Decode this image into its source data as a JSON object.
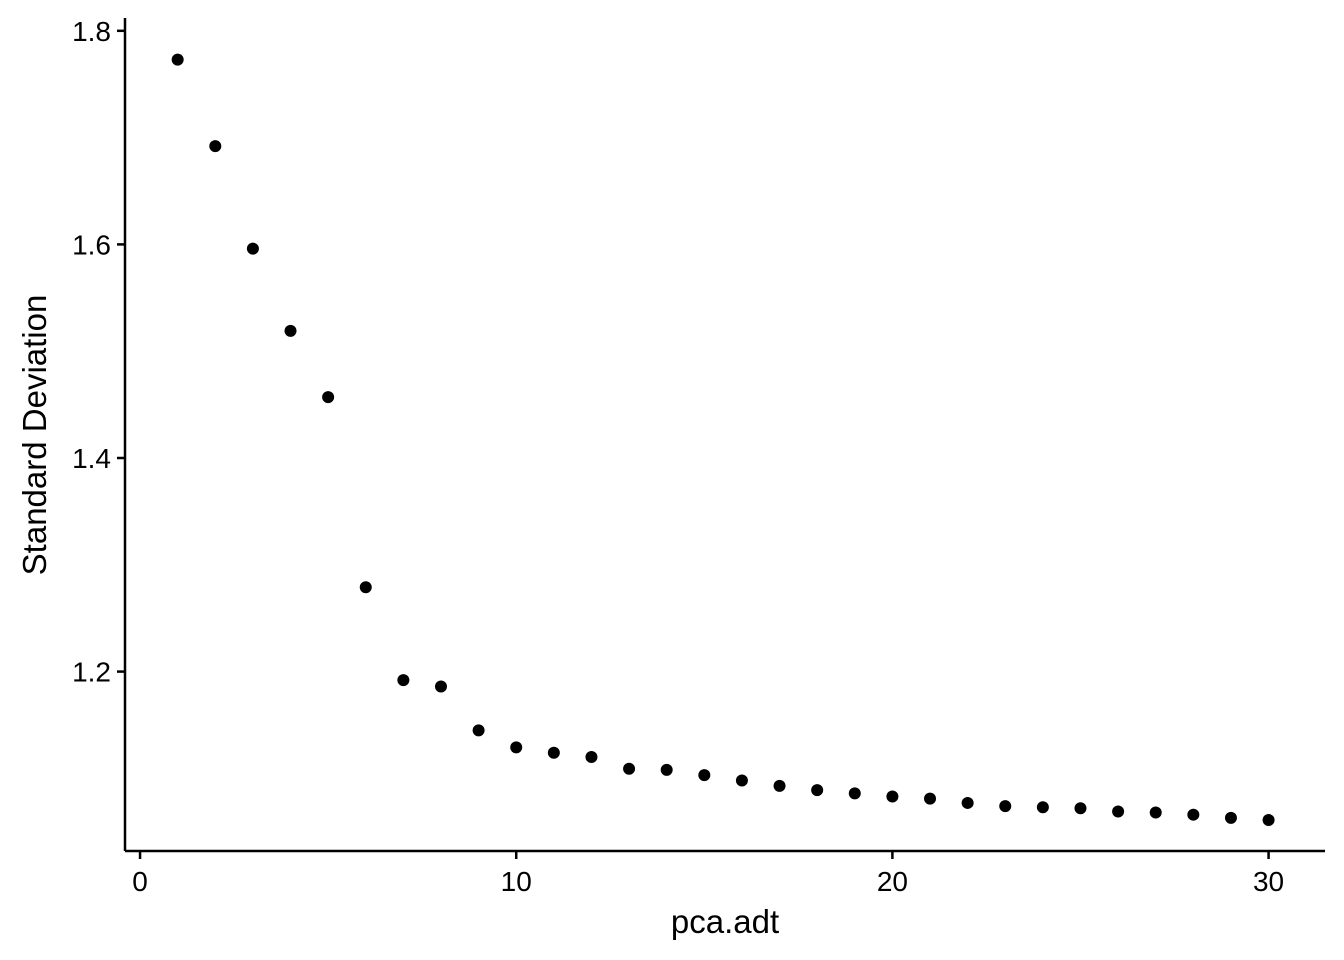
{
  "chart_data": {
    "type": "scatter",
    "title": "",
    "xlabel": "pca.adt",
    "ylabel": "Standard Deviation",
    "xlim": [
      -0.4,
      31.5
    ],
    "ylim": [
      1.032,
      1.812
    ],
    "x_ticks": [
      0,
      10,
      20,
      30
    ],
    "x_tick_labels": [
      "0",
      "10",
      "20",
      "30"
    ],
    "y_ticks": [
      1.2,
      1.4,
      1.6,
      1.8
    ],
    "y_tick_labels": [
      "1.2",
      "1.4",
      "1.6",
      "1.8"
    ],
    "grid": false,
    "legend": "none",
    "point_color": "#000000",
    "series": [
      {
        "x": [
          1,
          2,
          3,
          4,
          5,
          6,
          7,
          8,
          9,
          10,
          11,
          12,
          13,
          14,
          15,
          16,
          17,
          18,
          19,
          20,
          21,
          22,
          23,
          24,
          25,
          26,
          27,
          28,
          29,
          30
        ],
        "y": [
          1.773,
          1.692,
          1.596,
          1.519,
          1.457,
          1.279,
          1.192,
          1.186,
          1.145,
          1.129,
          1.124,
          1.12,
          1.109,
          1.108,
          1.103,
          1.098,
          1.093,
          1.089,
          1.086,
          1.083,
          1.081,
          1.077,
          1.074,
          1.073,
          1.072,
          1.069,
          1.068,
          1.066,
          1.063,
          1.061
        ]
      }
    ]
  }
}
